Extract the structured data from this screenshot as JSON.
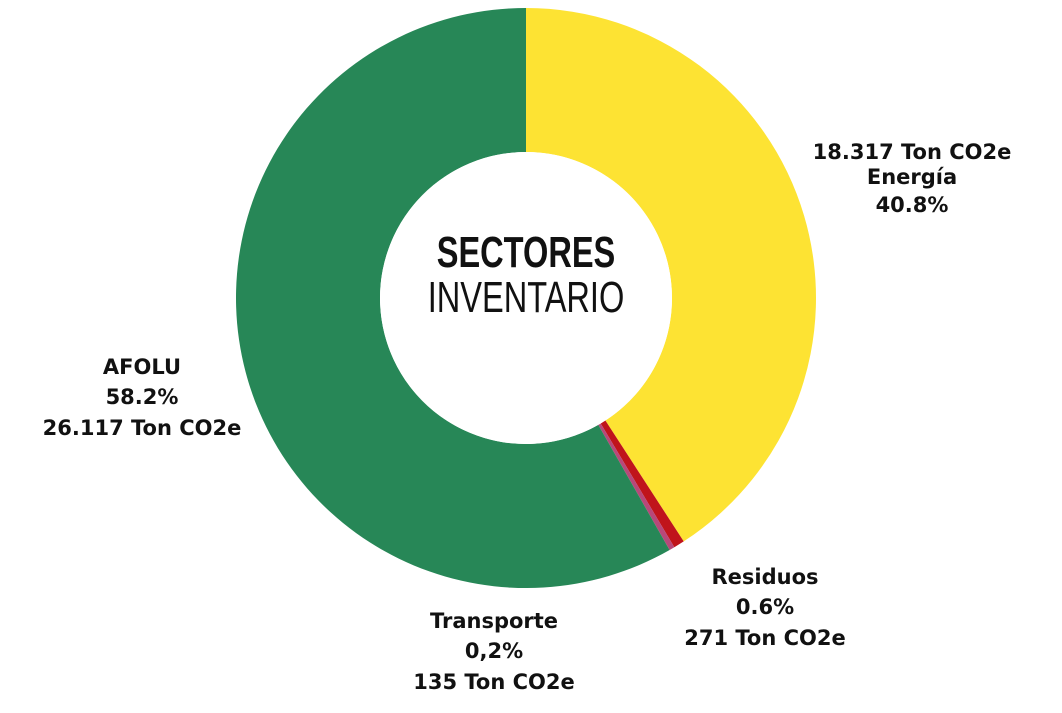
{
  "chart_data": {
    "type": "pie",
    "donut": true,
    "title": "SECTORES",
    "subtitle": "INVENTARIO",
    "slices": [
      {
        "name": "Energía",
        "value": 18317,
        "percent_label": "40.8%",
        "value_label": "18.317 Ton CO2e",
        "color": "#FDE333"
      },
      {
        "name": "Residuos",
        "value": 271,
        "percent_label": "0.6%",
        "value_label": "271 Ton CO2e",
        "color": "#C0141B"
      },
      {
        "name": "Transporte",
        "value": 135,
        "percent_label": "0,2%",
        "value_label": "135 Ton CO2e",
        "color": "#B8487A"
      },
      {
        "name": "AFOLU",
        "value": 26117,
        "percent_label": "58.2%",
        "value_label": "26.117 Ton CO2e",
        "color": "#278757"
      }
    ]
  }
}
